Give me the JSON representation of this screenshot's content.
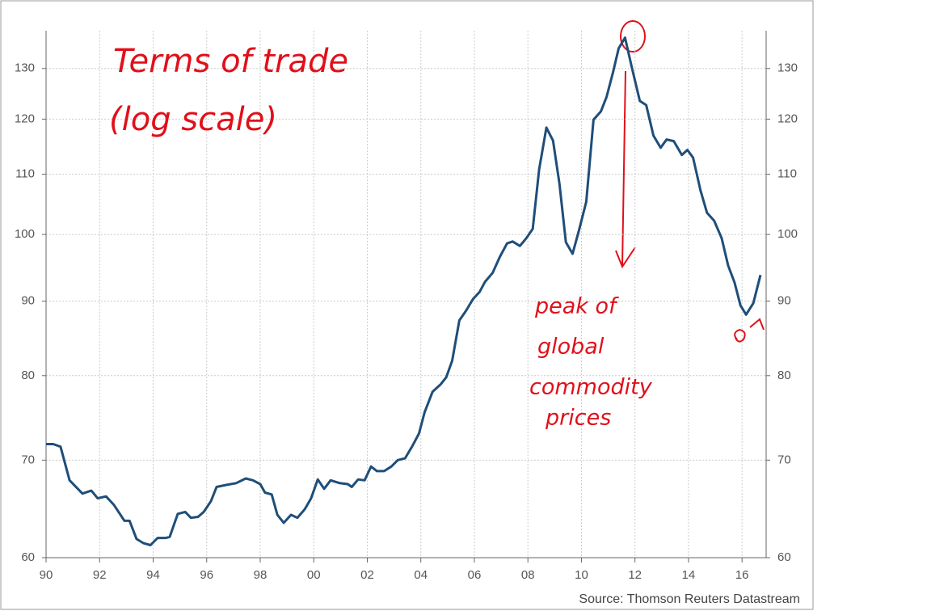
{
  "chart_data": {
    "type": "line",
    "log_scale": true,
    "grid": true,
    "source": "Source: Thomson Reuters Datastream",
    "annotations": [
      "Terms of trade",
      "(log scale)",
      "peak of",
      "global",
      "commodity",
      "prices"
    ],
    "xlim": [
      1990,
      2016.9
    ],
    "xticks": [
      {
        "value": 1990,
        "label": "90"
      },
      {
        "value": 1992,
        "label": "92"
      },
      {
        "value": 1994,
        "label": "94"
      },
      {
        "value": 1996,
        "label": "96"
      },
      {
        "value": 1998,
        "label": "98"
      },
      {
        "value": 2000,
        "label": "00"
      },
      {
        "value": 2002,
        "label": "02"
      },
      {
        "value": 2004,
        "label": "04"
      },
      {
        "value": 2006,
        "label": "06"
      },
      {
        "value": 2008,
        "label": "08"
      },
      {
        "value": 2010,
        "label": "10"
      },
      {
        "value": 2012,
        "label": "12"
      },
      {
        "value": 2014,
        "label": "14"
      },
      {
        "value": 2016,
        "label": "16"
      }
    ],
    "ylim": [
      60,
      138
    ],
    "yticks": [
      60,
      70,
      80,
      90,
      100,
      110,
      120,
      130
    ],
    "y2lim": [
      60,
      138
    ],
    "y2ticks": [
      60,
      70,
      80,
      90,
      100,
      110,
      120,
      130
    ],
    "x": [
      1990.0,
      1990.27,
      1990.54,
      1990.88,
      1991.36,
      1991.69,
      1991.93,
      1992.24,
      1992.54,
      1992.93,
      1993.12,
      1993.38,
      1993.63,
      1993.9,
      1994.17,
      1994.47,
      1994.62,
      1994.92,
      1995.2,
      1995.41,
      1995.68,
      1995.89,
      1996.16,
      1996.37,
      1996.71,
      1997.1,
      1997.46,
      1997.73,
      1998.0,
      1998.18,
      1998.43,
      1998.64,
      1998.88,
      1999.15,
      1999.39,
      1999.67,
      1999.9,
      2000.15,
      2000.39,
      2000.63,
      2000.97,
      2001.27,
      2001.42,
      2001.66,
      2001.9,
      2002.14,
      2002.36,
      2002.63,
      2002.9,
      2003.14,
      2003.41,
      2003.69,
      2003.93,
      2004.14,
      2004.44,
      2004.74,
      2004.95,
      2005.17,
      2005.44,
      2005.68,
      2005.95,
      2006.19,
      2006.4,
      2006.68,
      2006.95,
      2007.22,
      2007.43,
      2007.7,
      2007.94,
      2008.18,
      2008.42,
      2008.69,
      2008.94,
      2009.18,
      2009.42,
      2009.67,
      2009.91,
      2010.18,
      2010.45,
      2010.73,
      2010.94,
      2011.18,
      2011.39,
      2011.63,
      2011.87,
      2012.18,
      2012.42,
      2012.69,
      2012.96,
      2013.18,
      2013.45,
      2013.75,
      2013.96,
      2014.17,
      2014.45,
      2014.69,
      2014.96,
      2015.24,
      2015.48,
      2015.72,
      2015.94,
      2016.15,
      2016.42,
      2016.69
    ],
    "series": [
      {
        "name": "Terms of trade",
        "color": "#1f4e79",
        "values": [
          71.8,
          71.8,
          71.5,
          67.8,
          66.4,
          66.7,
          65.9,
          66.1,
          65.2,
          63.6,
          63.6,
          61.8,
          61.4,
          61.2,
          61.9,
          61.9,
          62.0,
          64.3,
          64.5,
          63.9,
          64.0,
          64.5,
          65.6,
          67.1,
          67.3,
          67.5,
          68.0,
          67.8,
          67.4,
          66.5,
          66.3,
          64.2,
          63.4,
          64.2,
          63.9,
          64.8,
          65.9,
          67.9,
          66.9,
          67.8,
          67.5,
          67.4,
          67.1,
          67.9,
          67.8,
          69.3,
          68.8,
          68.8,
          69.3,
          70.0,
          70.2,
          71.6,
          73.0,
          75.5,
          78.0,
          78.9,
          79.8,
          81.9,
          87.3,
          88.6,
          90.3,
          91.3,
          92.8,
          94.1,
          96.5,
          98.6,
          98.9,
          98.2,
          99.4,
          100.9,
          110.8,
          118.4,
          116.0,
          108.3,
          98.8,
          97.0,
          100.7,
          105.3,
          119.9,
          121.5,
          124.3,
          129.2,
          134.2,
          136.5,
          130.5,
          123.5,
          122.7,
          116.9,
          114.7,
          116.2,
          115.9,
          113.4,
          114.3,
          112.9,
          107.2,
          103.5,
          102.2,
          99.4,
          95.2,
          92.7,
          89.4,
          88.1,
          89.7,
          93.8
        ]
      }
    ]
  }
}
